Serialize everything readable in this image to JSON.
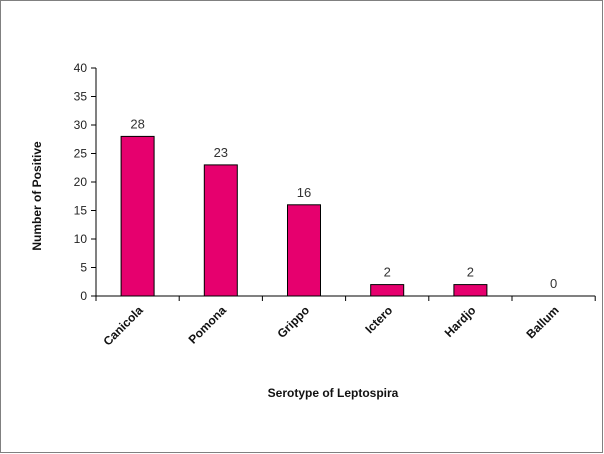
{
  "chart_data": {
    "type": "bar",
    "title": "",
    "xlabel": "Serotype of Leptospira",
    "ylabel": "Number of Positive",
    "categories": [
      "Canicola",
      "Pomona",
      "Grippo",
      "Ictero",
      "Hardjo",
      "Ballum"
    ],
    "values": [
      28,
      23,
      16,
      2,
      2,
      0
    ],
    "ylim": [
      0,
      40
    ],
    "yticks": [
      0,
      5,
      10,
      15,
      20,
      25,
      30,
      35,
      40
    ],
    "grid": false,
    "legend": "none",
    "bar_color": "#E6006E"
  }
}
